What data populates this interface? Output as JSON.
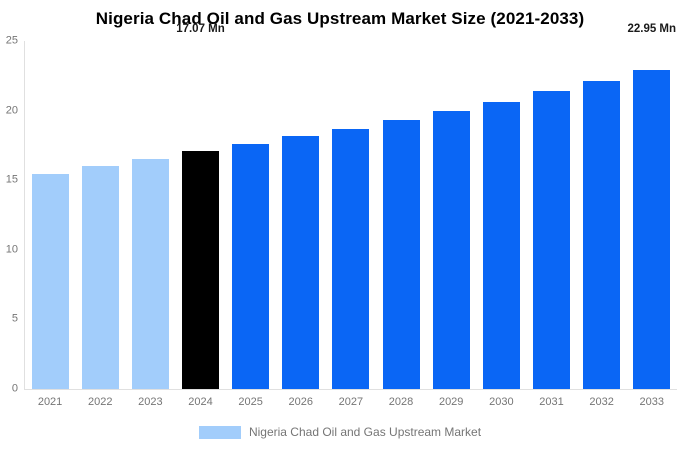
{
  "chart_data": {
    "type": "bar",
    "title": "Nigeria Chad Oil and Gas Upstream Market Size (2021-2033)",
    "unit": "Mn",
    "categories": [
      "2021",
      "2022",
      "2023",
      "2024",
      "2025",
      "2026",
      "2027",
      "2028",
      "2029",
      "2030",
      "2031",
      "2032",
      "2033"
    ],
    "values": [
      15.45,
      16.0,
      16.5,
      17.07,
      17.6,
      18.2,
      18.7,
      19.3,
      20.0,
      20.65,
      21.4,
      22.15,
      22.95
    ],
    "bar_colors": [
      "#A2CDFB",
      "#A2CDFB",
      "#A2CDFB",
      "#000000",
      "#0A66F5",
      "#0A66F5",
      "#0A66F5",
      "#0A66F5",
      "#0A66F5",
      "#0A66F5",
      "#0A66F5",
      "#0A66F5",
      "#0A66F5"
    ],
    "data_labels": [
      "",
      "",
      "",
      "17.07 Mn",
      "",
      "",
      "",
      "",
      "",
      "",
      "",
      "",
      "22.95 Mn"
    ],
    "xlabel": "",
    "ylabel": "",
    "ylim": [
      0,
      25
    ],
    "y_ticks": [
      0,
      5,
      10,
      15,
      20,
      25
    ],
    "grid": false,
    "legend_position": "bottom"
  },
  "legend": {
    "label": "Nigeria Chad Oil and Gas Upstream Market",
    "swatch_color": "#A2CDFB"
  },
  "colors": {
    "title_text": "#000000",
    "axis_text": "#757575",
    "axis_line": "#e0e0e0",
    "value_label_text": "#1a1a1a",
    "historical_bar": "#A2CDFB",
    "current_year_bar": "#000000",
    "forecast_bar": "#0A66F5",
    "background": "#ffffff"
  }
}
